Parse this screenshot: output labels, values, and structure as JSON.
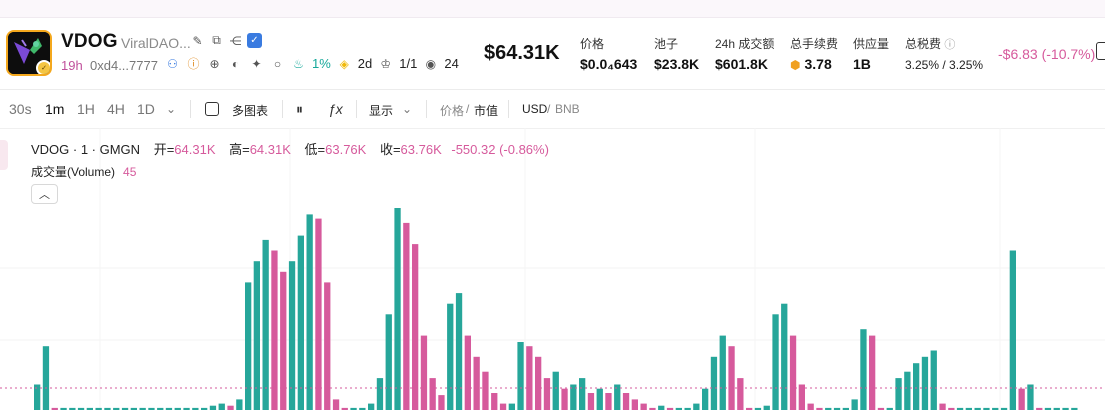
{
  "header": {
    "symbol": "VDOG",
    "name": "ViralDAO...",
    "age": "19h",
    "address": "0xd4...7777",
    "pct": "1%",
    "days": "2d",
    "ratio": "1/1",
    "views": "24",
    "price": "$64.31K",
    "stats": [
      {
        "label": "价格",
        "value": "$0.0₄643"
      },
      {
        "label": "池子",
        "value": "$23.8K"
      },
      {
        "label": "24h 成交额",
        "value": "$601.8K"
      },
      {
        "label": "总手续费",
        "value": "3.78"
      },
      {
        "label": "供应量",
        "value": "1B"
      },
      {
        "label": "总税费",
        "value": "3.25% / 3.25%"
      }
    ],
    "change": "-$6.83 (-10.7%)"
  },
  "toolbar": {
    "intervals": [
      "30s",
      "1m",
      "1H",
      "4H",
      "1D"
    ],
    "active_interval": "1m",
    "multi_chart": "多图表",
    "display": "显示",
    "price_label": "价格",
    "mcap_label": "市值",
    "currency_a": "USD",
    "currency_b": "BNB"
  },
  "legend": {
    "title": "VDOG · 1 · GMGN",
    "open_label": "开=",
    "open": "64.31K",
    "high_label": "高=",
    "high": "64.31K",
    "low_label": "低=",
    "low": "63.76K",
    "close_label": "收=",
    "close": "63.76K",
    "change": "-550.32 (-0.86%)",
    "volume_label": "成交量(Volume)",
    "volume_value": "45"
  },
  "colors": {
    "up": "#26a69a",
    "down": "#d65a9c",
    "accent": "#d65a9c"
  },
  "chart_data": {
    "type": "bar",
    "series": [
      {
        "name": "成交量(Volume)",
        "values": [
          12,
          30,
          1,
          1,
          1,
          1,
          1,
          1,
          1,
          1,
          1,
          1,
          1,
          1,
          1,
          1,
          1,
          1,
          1,
          1,
          2,
          3,
          2,
          5,
          60,
          70,
          80,
          75,
          65,
          70,
          82,
          92,
          90,
          60,
          5,
          1,
          1,
          1,
          3,
          15,
          45,
          95,
          88,
          78,
          35,
          15,
          7,
          50,
          55,
          35,
          25,
          18,
          8,
          3,
          3,
          32,
          30,
          25,
          15,
          18,
          10,
          12,
          15,
          8,
          10,
          8,
          12,
          8,
          5,
          3,
          1,
          2,
          1,
          1,
          1,
          3,
          10,
          25,
          35,
          30,
          15,
          1,
          1,
          2,
          45,
          50,
          35,
          12,
          3,
          1,
          1,
          1,
          1,
          5,
          38,
          35,
          1,
          1,
          15,
          18,
          22,
          25,
          28,
          3,
          1,
          1,
          1,
          1,
          1,
          1,
          1,
          75,
          10,
          12,
          1,
          1,
          1,
          1,
          1
        ]
      }
    ]
  }
}
